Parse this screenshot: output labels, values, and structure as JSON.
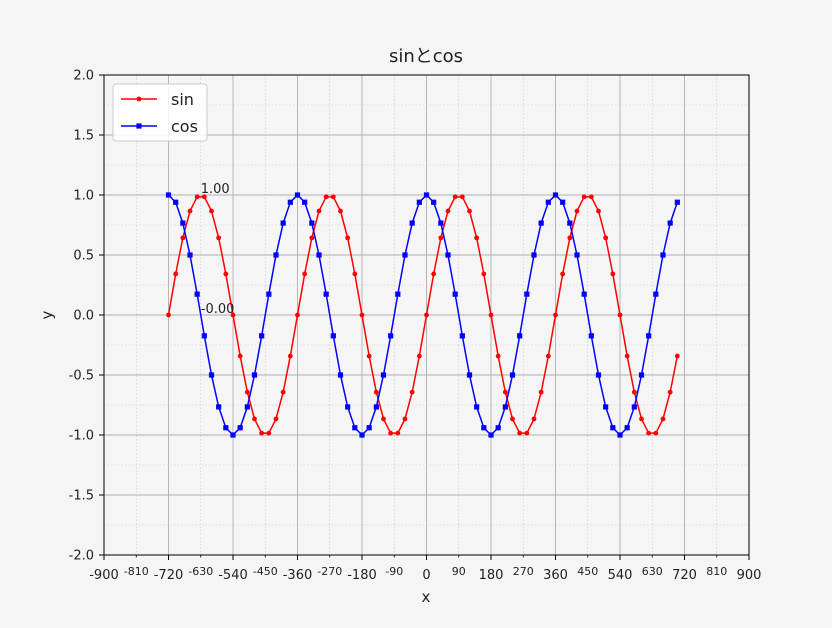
{
  "chart_data": {
    "type": "line",
    "title": "sinとcos",
    "xlabel": "x",
    "ylabel": "y",
    "xlim": [
      -900,
      900
    ],
    "ylim": [
      -2.0,
      2.0
    ],
    "x_major_ticks": [
      "-900",
      "-720",
      "-540",
      "-360",
      "-180",
      "0",
      "180",
      "360",
      "540",
      "720",
      "900"
    ],
    "x_minor_ticks": [
      "-810",
      "-630",
      "-450",
      "-270",
      "-90",
      "90",
      "270",
      "450",
      "630",
      "810"
    ],
    "y_ticks": [
      "2.0",
      "1.5",
      "1.0",
      "0.5",
      "0.0",
      "-0.5",
      "-1.0",
      "-1.5",
      "-2.0"
    ],
    "grid": "major solid, minor dotted",
    "legend": {
      "position": "top-left",
      "entries": [
        "sin",
        "cos"
      ]
    },
    "series": [
      {
        "name": "sin",
        "function": "sin",
        "color": "#ff0000",
        "marker": "circle"
      },
      {
        "name": "cos",
        "function": "cos",
        "color": "#0000ff",
        "marker": "square"
      }
    ],
    "x_values": {
      "start": -720,
      "stop": 700,
      "step": 20
    },
    "annotations": [
      {
        "text": "1.00",
        "x": -630,
        "y": 1.0
      },
      {
        "text": "-0.00",
        "x": -630,
        "y": 0.0
      }
    ]
  }
}
